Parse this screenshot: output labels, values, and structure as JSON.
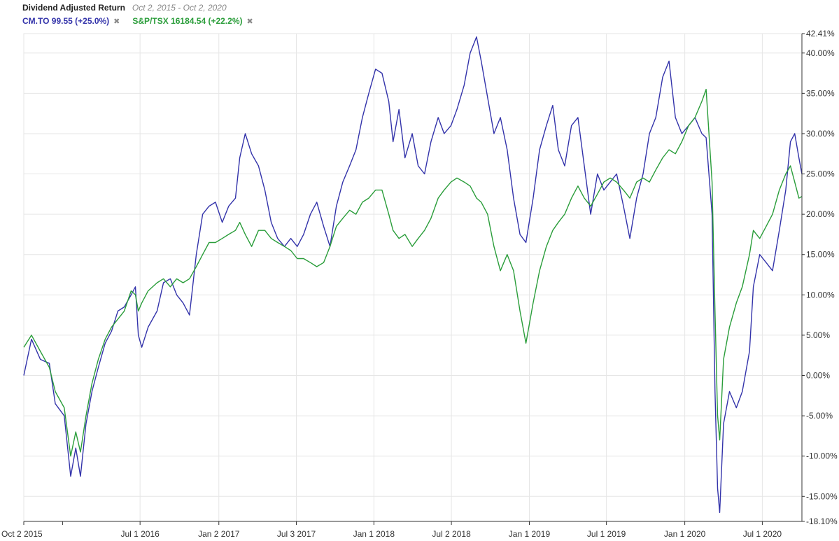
{
  "header": {
    "title": "Dividend Adjusted Return",
    "range": "Oct 2, 2015 - Oct 2, 2020"
  },
  "legend": [
    {
      "label": "CM.TO 99.55 (+25.0%)",
      "color": "#3333aa",
      "close": "✖"
    },
    {
      "label": "S&P/TSX 16184.54 (+22.2%)",
      "color": "#2a9d3a",
      "close": "✖"
    }
  ],
  "chart_data": {
    "type": "line",
    "title": "Dividend Adjusted Return",
    "ylim": [
      -18.1,
      42.41
    ],
    "yticks": [
      "42.41%",
      "40.00%",
      "35.00%",
      "30.00%",
      "25.00%",
      "20.00%",
      "15.00%",
      "10.00%",
      "5.00%",
      "0.00%",
      "-5.00%",
      "-10.00%",
      "-15.00%",
      "-18.10%"
    ],
    "xticks": [
      {
        "date": "2015-10-02",
        "label": "Oct 2 2015"
      },
      {
        "date": "2016-07-01",
        "label": "Jul 1 2016"
      },
      {
        "date": "2017-01-02",
        "label": "Jan 2 2017"
      },
      {
        "date": "2017-07-03",
        "label": "Jul 3 2017"
      },
      {
        "date": "2018-01-01",
        "label": "Jan 1 2018"
      },
      {
        "date": "2018-07-02",
        "label": "Jul 2 2018"
      },
      {
        "date": "2019-01-01",
        "label": "Jan 1 2019"
      },
      {
        "date": "2019-07-01",
        "label": "Jul 1 2019"
      },
      {
        "date": "2020-01-01",
        "label": "Jan 1 2020"
      },
      {
        "date": "2020-07-01",
        "label": "Jul 1 2020"
      }
    ],
    "x_domain": [
      "2015-10-02",
      "2020-10-02"
    ],
    "series": [
      {
        "name": "CM.TO 99.55 (+25.0%)",
        "color": "#3333aa",
        "points": [
          [
            "2015-10-02",
            0.0
          ],
          [
            "2015-10-20",
            4.5
          ],
          [
            "2015-11-10",
            2.0
          ],
          [
            "2015-12-01",
            1.5
          ],
          [
            "2015-12-15",
            -3.5
          ],
          [
            "2016-01-05",
            -5.0
          ],
          [
            "2016-01-20",
            -12.5
          ],
          [
            "2016-02-01",
            -9.0
          ],
          [
            "2016-02-12",
            -12.5
          ],
          [
            "2016-02-25",
            -6.0
          ],
          [
            "2016-03-10",
            -2.0
          ],
          [
            "2016-03-25",
            1.0
          ],
          [
            "2016-04-10",
            4.0
          ],
          [
            "2016-04-25",
            5.5
          ],
          [
            "2016-05-10",
            8.0
          ],
          [
            "2016-05-25",
            8.5
          ],
          [
            "2016-06-10",
            10.0
          ],
          [
            "2016-06-20",
            11.0
          ],
          [
            "2016-06-27",
            5.0
          ],
          [
            "2016-07-05",
            3.5
          ],
          [
            "2016-07-20",
            6.0
          ],
          [
            "2016-08-10",
            8.0
          ],
          [
            "2016-08-25",
            11.5
          ],
          [
            "2016-09-10",
            12.0
          ],
          [
            "2016-09-25",
            10.0
          ],
          [
            "2016-10-10",
            9.0
          ],
          [
            "2016-10-25",
            7.5
          ],
          [
            "2016-11-10",
            15.0
          ],
          [
            "2016-11-25",
            20.0
          ],
          [
            "2016-12-10",
            21.0
          ],
          [
            "2016-12-25",
            21.5
          ],
          [
            "2017-01-10",
            19.0
          ],
          [
            "2017-01-25",
            21.0
          ],
          [
            "2017-02-10",
            22.0
          ],
          [
            "2017-02-20",
            27.0
          ],
          [
            "2017-03-05",
            30.0
          ],
          [
            "2017-03-20",
            27.5
          ],
          [
            "2017-04-05",
            26.0
          ],
          [
            "2017-04-20",
            23.0
          ],
          [
            "2017-05-05",
            19.0
          ],
          [
            "2017-05-20",
            17.0
          ],
          [
            "2017-06-05",
            16.0
          ],
          [
            "2017-06-20",
            17.0
          ],
          [
            "2017-07-05",
            16.0
          ],
          [
            "2017-07-20",
            17.5
          ],
          [
            "2017-08-05",
            20.0
          ],
          [
            "2017-08-20",
            21.5
          ],
          [
            "2017-09-05",
            18.5
          ],
          [
            "2017-09-20",
            16.0
          ],
          [
            "2017-10-05",
            21.0
          ],
          [
            "2017-10-20",
            24.0
          ],
          [
            "2017-11-05",
            26.0
          ],
          [
            "2017-11-20",
            28.0
          ],
          [
            "2017-12-05",
            32.0
          ],
          [
            "2017-12-20",
            35.0
          ],
          [
            "2018-01-05",
            38.0
          ],
          [
            "2018-01-20",
            37.5
          ],
          [
            "2018-02-05",
            34.0
          ],
          [
            "2018-02-15",
            29.0
          ],
          [
            "2018-03-01",
            33.0
          ],
          [
            "2018-03-15",
            27.0
          ],
          [
            "2018-04-01",
            30.0
          ],
          [
            "2018-04-15",
            26.0
          ],
          [
            "2018-04-30",
            25.0
          ],
          [
            "2018-05-15",
            29.0
          ],
          [
            "2018-06-01",
            32.0
          ],
          [
            "2018-06-15",
            30.0
          ],
          [
            "2018-07-01",
            31.0
          ],
          [
            "2018-07-15",
            33.0
          ],
          [
            "2018-08-01",
            36.0
          ],
          [
            "2018-08-15",
            40.0
          ],
          [
            "2018-08-30",
            42.0
          ],
          [
            "2018-09-10",
            39.0
          ],
          [
            "2018-09-25",
            34.5
          ],
          [
            "2018-10-10",
            30.0
          ],
          [
            "2018-10-25",
            32.0
          ],
          [
            "2018-11-10",
            28.0
          ],
          [
            "2018-11-25",
            22.0
          ],
          [
            "2018-12-10",
            17.5
          ],
          [
            "2018-12-24",
            16.5
          ],
          [
            "2019-01-10",
            22.0
          ],
          [
            "2019-01-25",
            28.0
          ],
          [
            "2019-02-10",
            31.0
          ],
          [
            "2019-02-25",
            33.5
          ],
          [
            "2019-03-10",
            28.0
          ],
          [
            "2019-03-25",
            26.0
          ],
          [
            "2019-04-10",
            31.0
          ],
          [
            "2019-04-25",
            32.0
          ],
          [
            "2019-05-10",
            26.0
          ],
          [
            "2019-05-25",
            20.0
          ],
          [
            "2019-06-10",
            25.0
          ],
          [
            "2019-06-25",
            23.0
          ],
          [
            "2019-07-10",
            24.0
          ],
          [
            "2019-07-25",
            25.0
          ],
          [
            "2019-08-10",
            21.0
          ],
          [
            "2019-08-25",
            17.0
          ],
          [
            "2019-09-10",
            22.0
          ],
          [
            "2019-09-25",
            25.0
          ],
          [
            "2019-10-10",
            30.0
          ],
          [
            "2019-10-25",
            32.0
          ],
          [
            "2019-11-10",
            37.0
          ],
          [
            "2019-11-25",
            39.0
          ],
          [
            "2019-12-10",
            32.0
          ],
          [
            "2019-12-25",
            30.0
          ],
          [
            "2020-01-10",
            31.0
          ],
          [
            "2020-01-25",
            32.0
          ],
          [
            "2020-02-10",
            30.0
          ],
          [
            "2020-02-20",
            29.5
          ],
          [
            "2020-03-05",
            20.0
          ],
          [
            "2020-03-12",
            -2.0
          ],
          [
            "2020-03-18",
            -14.0
          ],
          [
            "2020-03-23",
            -17.0
          ],
          [
            "2020-04-01",
            -6.0
          ],
          [
            "2020-04-15",
            -2.0
          ],
          [
            "2020-05-01",
            -4.0
          ],
          [
            "2020-05-15",
            -2.0
          ],
          [
            "2020-06-01",
            3.0
          ],
          [
            "2020-06-10",
            11.0
          ],
          [
            "2020-06-25",
            15.0
          ],
          [
            "2020-07-10",
            14.0
          ],
          [
            "2020-07-25",
            13.0
          ],
          [
            "2020-08-10",
            18.0
          ],
          [
            "2020-08-25",
            23.0
          ],
          [
            "2020-09-05",
            29.0
          ],
          [
            "2020-09-15",
            30.0
          ],
          [
            "2020-09-25",
            27.0
          ],
          [
            "2020-10-02",
            25.0
          ]
        ]
      },
      {
        "name": "S&P/TSX 16184.54 (+22.2%)",
        "color": "#2a9d3a",
        "points": [
          [
            "2015-10-02",
            3.5
          ],
          [
            "2015-10-20",
            5.0
          ],
          [
            "2015-11-10",
            3.0
          ],
          [
            "2015-12-01",
            1.0
          ],
          [
            "2015-12-15",
            -2.0
          ],
          [
            "2016-01-05",
            -4.0
          ],
          [
            "2016-01-20",
            -10.0
          ],
          [
            "2016-02-01",
            -7.0
          ],
          [
            "2016-02-12",
            -9.5
          ],
          [
            "2016-02-25",
            -5.0
          ],
          [
            "2016-03-10",
            -1.0
          ],
          [
            "2016-03-25",
            2.0
          ],
          [
            "2016-04-10",
            4.5
          ],
          [
            "2016-04-25",
            6.0
          ],
          [
            "2016-05-10",
            7.0
          ],
          [
            "2016-05-25",
            8.0
          ],
          [
            "2016-06-10",
            10.5
          ],
          [
            "2016-06-20",
            10.0
          ],
          [
            "2016-06-27",
            8.0
          ],
          [
            "2016-07-05",
            9.0
          ],
          [
            "2016-07-20",
            10.5
          ],
          [
            "2016-08-10",
            11.5
          ],
          [
            "2016-08-25",
            12.0
          ],
          [
            "2016-09-10",
            11.0
          ],
          [
            "2016-09-25",
            12.0
          ],
          [
            "2016-10-10",
            11.5
          ],
          [
            "2016-10-25",
            12.0
          ],
          [
            "2016-11-10",
            13.5
          ],
          [
            "2016-11-25",
            15.0
          ],
          [
            "2016-12-10",
            16.5
          ],
          [
            "2016-12-25",
            16.5
          ],
          [
            "2017-01-10",
            17.0
          ],
          [
            "2017-01-25",
            17.5
          ],
          [
            "2017-02-10",
            18.0
          ],
          [
            "2017-02-20",
            19.0
          ],
          [
            "2017-03-05",
            17.5
          ],
          [
            "2017-03-20",
            16.0
          ],
          [
            "2017-04-05",
            18.0
          ],
          [
            "2017-04-20",
            18.0
          ],
          [
            "2017-05-05",
            17.0
          ],
          [
            "2017-05-20",
            16.5
          ],
          [
            "2017-06-05",
            16.0
          ],
          [
            "2017-06-20",
            15.5
          ],
          [
            "2017-07-05",
            14.5
          ],
          [
            "2017-07-20",
            14.5
          ],
          [
            "2017-08-05",
            14.0
          ],
          [
            "2017-08-20",
            13.5
          ],
          [
            "2017-09-05",
            14.0
          ],
          [
            "2017-09-20",
            16.0
          ],
          [
            "2017-10-05",
            18.5
          ],
          [
            "2017-10-20",
            19.5
          ],
          [
            "2017-11-05",
            20.5
          ],
          [
            "2017-11-20",
            20.0
          ],
          [
            "2017-12-05",
            21.5
          ],
          [
            "2017-12-20",
            22.0
          ],
          [
            "2018-01-05",
            23.0
          ],
          [
            "2018-01-20",
            23.0
          ],
          [
            "2018-02-05",
            20.0
          ],
          [
            "2018-02-15",
            18.0
          ],
          [
            "2018-03-01",
            17.0
          ],
          [
            "2018-03-15",
            17.5
          ],
          [
            "2018-04-01",
            16.0
          ],
          [
            "2018-04-15",
            17.0
          ],
          [
            "2018-04-30",
            18.0
          ],
          [
            "2018-05-15",
            19.5
          ],
          [
            "2018-06-01",
            22.0
          ],
          [
            "2018-06-15",
            23.0
          ],
          [
            "2018-07-01",
            24.0
          ],
          [
            "2018-07-15",
            24.5
          ],
          [
            "2018-08-01",
            24.0
          ],
          [
            "2018-08-15",
            23.5
          ],
          [
            "2018-08-30",
            22.0
          ],
          [
            "2018-09-10",
            21.5
          ],
          [
            "2018-09-25",
            20.0
          ],
          [
            "2018-10-10",
            16.0
          ],
          [
            "2018-10-25",
            13.0
          ],
          [
            "2018-11-10",
            15.0
          ],
          [
            "2018-11-25",
            13.0
          ],
          [
            "2018-12-10",
            8.0
          ],
          [
            "2018-12-24",
            4.0
          ],
          [
            "2019-01-10",
            9.0
          ],
          [
            "2019-01-25",
            13.0
          ],
          [
            "2019-02-10",
            16.0
          ],
          [
            "2019-02-25",
            18.0
          ],
          [
            "2019-03-10",
            19.0
          ],
          [
            "2019-03-25",
            20.0
          ],
          [
            "2019-04-10",
            22.0
          ],
          [
            "2019-04-25",
            23.5
          ],
          [
            "2019-05-10",
            22.0
          ],
          [
            "2019-05-25",
            21.0
          ],
          [
            "2019-06-10",
            22.5
          ],
          [
            "2019-06-25",
            24.0
          ],
          [
            "2019-07-10",
            24.5
          ],
          [
            "2019-07-25",
            24.0
          ],
          [
            "2019-08-10",
            23.0
          ],
          [
            "2019-08-25",
            22.0
          ],
          [
            "2019-09-10",
            24.0
          ],
          [
            "2019-09-25",
            24.5
          ],
          [
            "2019-10-10",
            24.0
          ],
          [
            "2019-10-25",
            25.5
          ],
          [
            "2019-11-10",
            27.0
          ],
          [
            "2019-11-25",
            28.0
          ],
          [
            "2019-12-10",
            27.5
          ],
          [
            "2019-12-25",
            29.0
          ],
          [
            "2020-01-10",
            31.0
          ],
          [
            "2020-01-25",
            32.0
          ],
          [
            "2020-02-10",
            34.0
          ],
          [
            "2020-02-20",
            35.5
          ],
          [
            "2020-03-05",
            24.0
          ],
          [
            "2020-03-12",
            8.0
          ],
          [
            "2020-03-18",
            -5.0
          ],
          [
            "2020-03-23",
            -8.0
          ],
          [
            "2020-04-01",
            2.0
          ],
          [
            "2020-04-15",
            6.0
          ],
          [
            "2020-05-01",
            9.0
          ],
          [
            "2020-05-15",
            11.0
          ],
          [
            "2020-06-01",
            15.0
          ],
          [
            "2020-06-10",
            18.0
          ],
          [
            "2020-06-25",
            17.0
          ],
          [
            "2020-07-10",
            18.5
          ],
          [
            "2020-07-25",
            20.0
          ],
          [
            "2020-08-10",
            23.0
          ],
          [
            "2020-08-25",
            25.0
          ],
          [
            "2020-09-05",
            26.0
          ],
          [
            "2020-09-15",
            24.0
          ],
          [
            "2020-09-25",
            22.0
          ],
          [
            "2020-10-02",
            22.2
          ]
        ]
      }
    ]
  }
}
